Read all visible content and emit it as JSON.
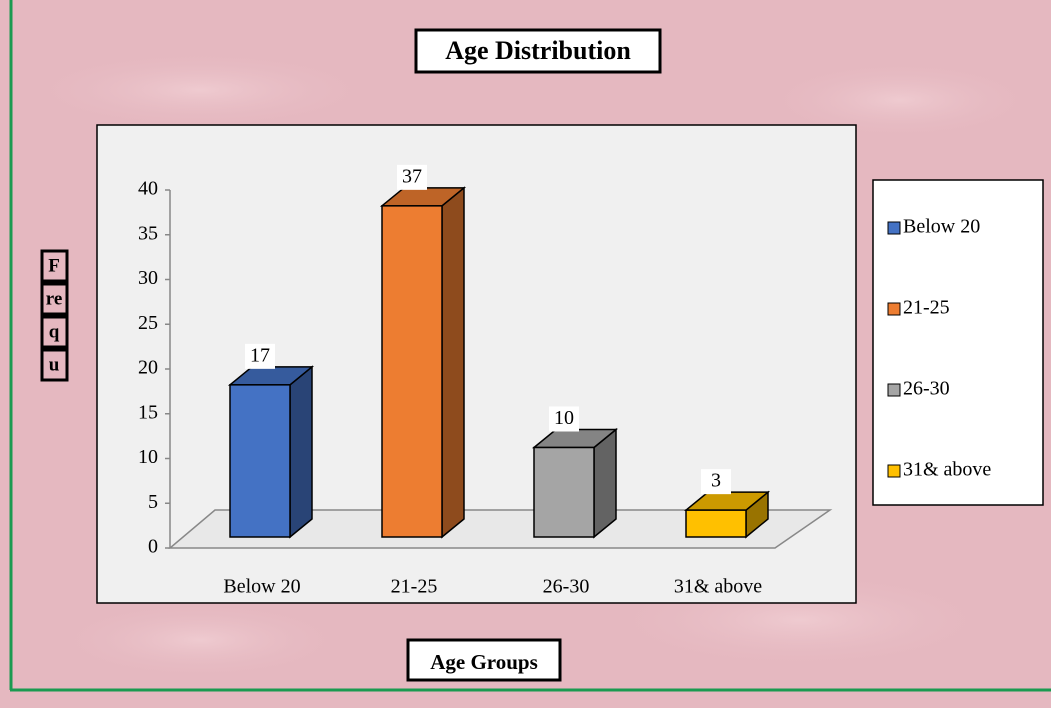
{
  "chart_data": {
    "type": "bar3d",
    "title": "Age Distribution",
    "x_label": "Age Groups",
    "y_label_fragments": [
      "F",
      "re",
      "q",
      "u"
    ],
    "categories": [
      "Below 20",
      "21-25",
      "26-30",
      "31& above"
    ],
    "values": [
      17,
      37,
      10,
      3
    ],
    "colors": [
      "#4472c4",
      "#ed7d31",
      "#a5a5a5",
      "#ffc000"
    ],
    "ylim": [
      0,
      40
    ],
    "yticks": [
      0,
      5,
      10,
      15,
      20,
      25,
      30,
      35,
      40
    ],
    "grid": false,
    "legend": "right"
  }
}
